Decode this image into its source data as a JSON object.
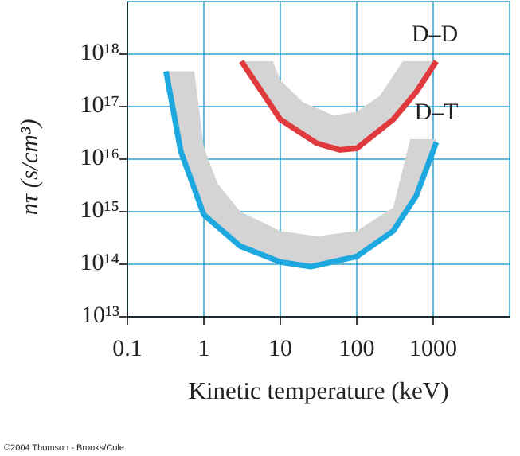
{
  "chart_data": {
    "type": "band-line",
    "xlabel": "Kinetic temperature (keV)",
    "ylabel": "nτ (s/cm³)",
    "xscale": "log",
    "yscale": "log",
    "xlim": [
      0.1,
      10000
    ],
    "ylim": [
      10000000000000.0,
      1e+19
    ],
    "xticks": [
      0.1,
      1,
      10,
      100,
      1000
    ],
    "yticks": [
      {
        "value": 10000000000000.0,
        "label": "10¹³"
      },
      {
        "value": 100000000000000.0,
        "label": "10¹⁴"
      },
      {
        "value": 1000000000000000.0,
        "label": "10¹⁵"
      },
      {
        "value": 1e+16,
        "label": "10¹⁶"
      },
      {
        "value": 1e+17,
        "label": "10¹⁷"
      },
      {
        "value": 1e+18,
        "label": "10¹⁸"
      }
    ],
    "grid": true,
    "grid_color": "#2aa4cf",
    "series": [
      {
        "name": "D–T",
        "color": "#1ea8e0",
        "x": [
          0.32,
          0.5,
          1,
          3,
          10,
          25,
          100,
          300,
          600,
          1100
        ],
        "values": [
          4.7e+17,
          1.4e+16,
          870000000000000.0,
          220000000000000.0,
          110000000000000.0,
          90000000000000.0,
          140000000000000.0,
          430000000000000.0,
          2000000000000000.0,
          2.1e+16
        ],
        "band": {
          "color": "#d4d4d4",
          "x": [
            0.34,
            0.75,
            1,
            1.5,
            3,
            10,
            30,
            100,
            300,
            500,
            1100
          ],
          "values": [
            4.7e+17,
            4.7e+17,
            1.7e+16,
            3500000000000000.0,
            1000000000000000.0,
            430000000000000.0,
            340000000000000.0,
            430000000000000.0,
            1200000000000000.0,
            2.4e+16,
            2.4e+16
          ]
        }
      },
      {
        "name": "D–D",
        "color": "#e03a3e",
        "x": [
          3.1,
          10,
          30,
          60,
          100,
          300,
          600,
          1100
        ],
        "values": [
          7.3e+17,
          5.7e+16,
          2e+16,
          1.5e+16,
          1.6e+16,
          5.7e+16,
          1.9e+17,
          7.3e+17
        ],
        "band": {
          "color": "#d4d4d4",
          "x": [
            3.3,
            8,
            10,
            20,
            50,
            100,
            200,
            400,
            1050
          ],
          "values": [
            7.3e+17,
            7.3e+17,
            3.2e+17,
            1.2e+17,
            6.8e+16,
            8e+16,
            1.6e+17,
            7.3e+17,
            7.3e+17
          ]
        }
      }
    ],
    "footer": "©2004 Thomson - Brooks/Cole"
  }
}
